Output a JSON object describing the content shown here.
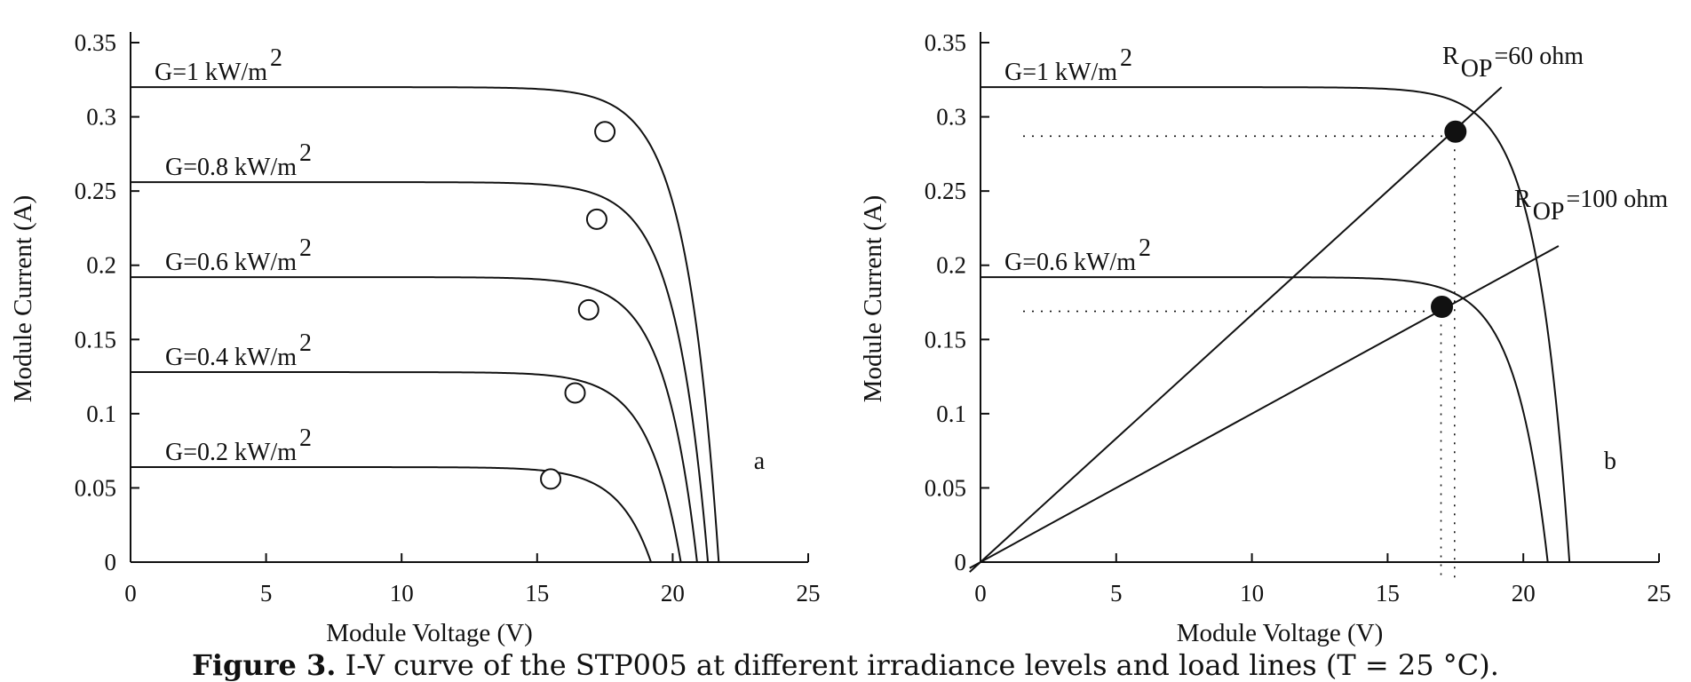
{
  "chart_data": [
    {
      "type": "line",
      "panel": "a",
      "xlabel": "Module Voltage (V)",
      "ylabel": "Module Current (A)",
      "xlim": [
        0,
        25
      ],
      "ylim": [
        0,
        0.35
      ],
      "xticks": [
        "0",
        "5",
        "10",
        "15",
        "20",
        "25"
      ],
      "yticks": [
        "0",
        "0.05",
        "0.1",
        "0.15",
        "0.2",
        "0.25",
        "0.3",
        "0.35"
      ],
      "series": [
        {
          "name": "G=1 kW/m",
          "exp": "2",
          "isc": 0.32,
          "voc": 21.7,
          "mpp": [
            17.5,
            0.29
          ]
        },
        {
          "name": "G=0.8 kW/m",
          "exp": "2",
          "isc": 0.256,
          "voc": 21.3,
          "mpp": [
            17.2,
            0.231
          ]
        },
        {
          "name": "G=0.6 kW/m",
          "exp": "2",
          "isc": 0.192,
          "voc": 20.9,
          "mpp": [
            16.9,
            0.17
          ]
        },
        {
          "name": "G=0.4 kW/m",
          "exp": "2",
          "isc": 0.128,
          "voc": 20.3,
          "mpp": [
            16.4,
            0.114
          ]
        },
        {
          "name": "G=0.2 kW/m",
          "exp": "2",
          "isc": 0.064,
          "voc": 19.2,
          "mpp": [
            15.5,
            0.056
          ]
        }
      ]
    },
    {
      "type": "line",
      "panel": "b",
      "xlabel": "Module Voltage (V)",
      "ylabel": "Module Current (A)",
      "xlim": [
        0,
        25
      ],
      "ylim": [
        0,
        0.35
      ],
      "xticks": [
        "0",
        "5",
        "10",
        "15",
        "20",
        "25"
      ],
      "yticks": [
        "0",
        "0.05",
        "0.1",
        "0.15",
        "0.2",
        "0.25",
        "0.3",
        "0.35"
      ],
      "series": [
        {
          "name": "G=1 kW/m",
          "exp": "2",
          "isc": 0.32,
          "voc": 21.7,
          "mpp": [
            17.5,
            0.29
          ]
        },
        {
          "name": "G=0.6 kW/m",
          "exp": "2",
          "isc": 0.192,
          "voc": 20.9,
          "mpp": [
            17.0,
            0.172
          ]
        }
      ],
      "load_lines": [
        {
          "label_main": "R",
          "label_sub": "OP",
          "label_rest": " =60 ohm",
          "resistance_ohm": 60,
          "x_end": 19.2
        },
        {
          "label_main": "R",
          "label_sub": "OP",
          "label_rest": " =100 ohm",
          "resistance_ohm": 100,
          "x_end": 21.3
        }
      ],
      "operating_points": [
        [
          17.5,
          0.29
        ],
        [
          17.0,
          0.172
        ]
      ]
    }
  ],
  "caption": {
    "bold": "Figure 3.",
    "text": " I-V curve of the STP005 at different irradiance levels and load lines (T = 25 °C)."
  }
}
